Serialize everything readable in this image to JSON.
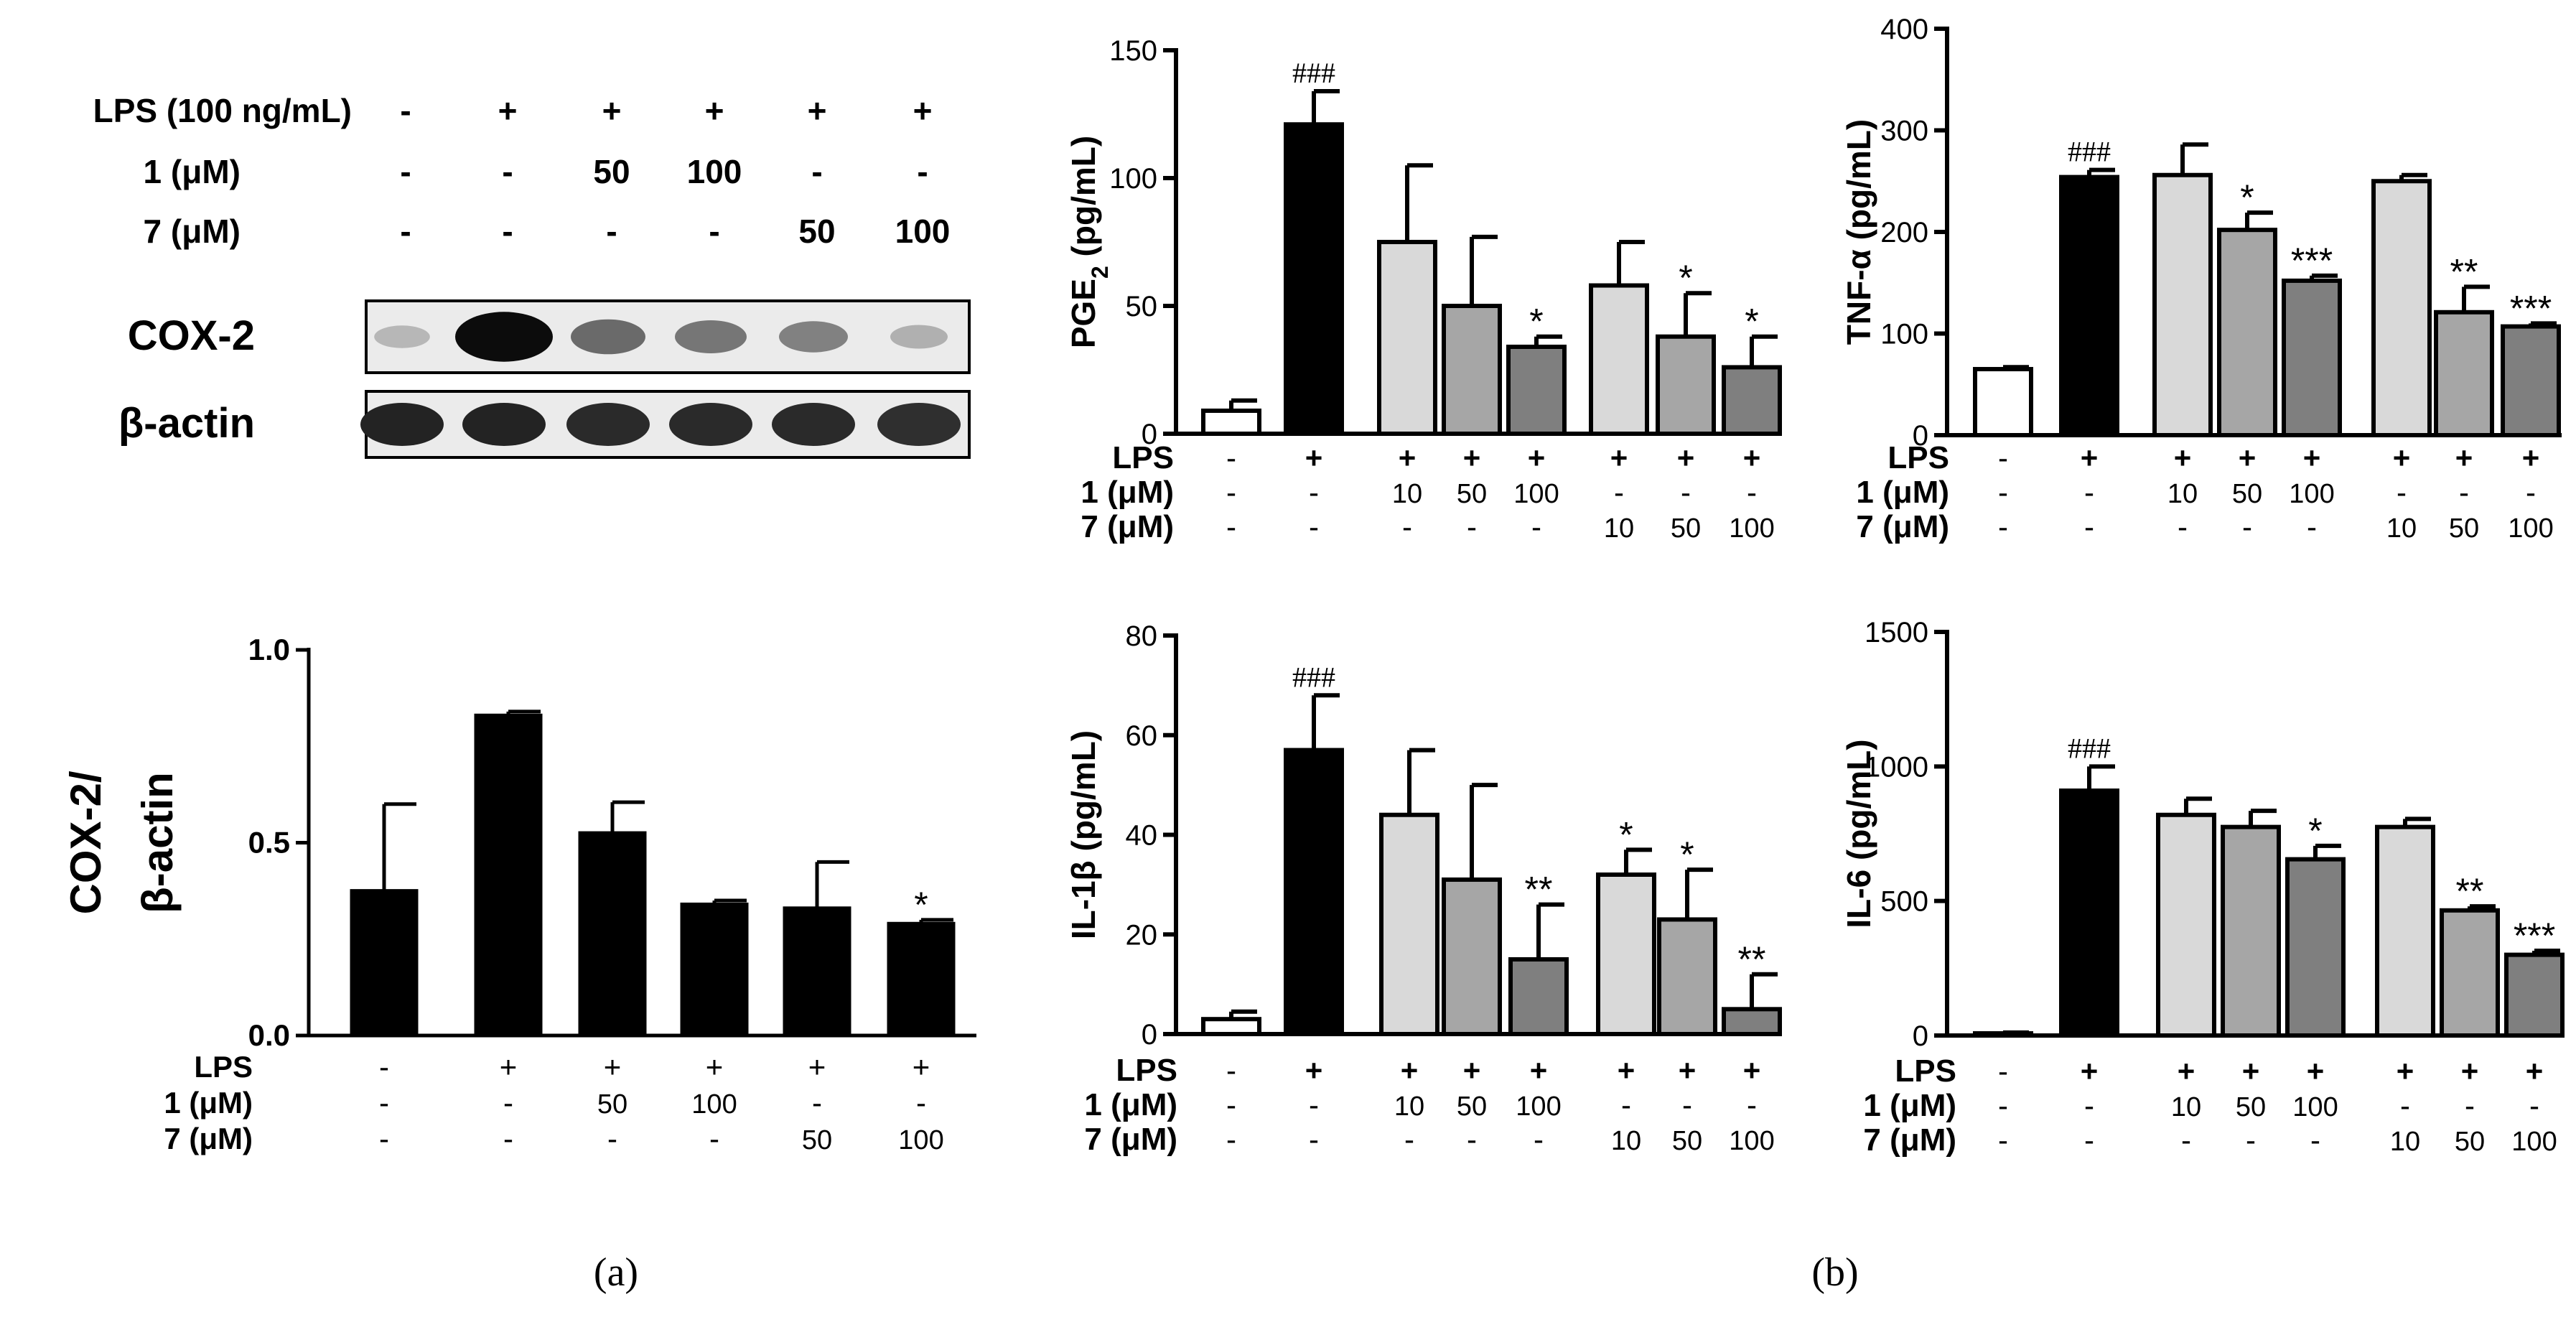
{
  "colors": {
    "ink": "#000000",
    "vehicle": "#ffffff",
    "lps": "#000000",
    "cpd10": "#d9d9d9",
    "cpd50": "#a6a6a6",
    "cpd100": "#7f7f7f"
  },
  "panel_labels": {
    "a": "(a)",
    "b": "(b)"
  },
  "blot": {
    "rows": [
      {
        "label": "LPS (100 ng/mL)",
        "cells": [
          "-",
          "+",
          "+",
          "+",
          "+",
          "+"
        ]
      },
      {
        "label": "1 (μM)",
        "cells": [
          "-",
          "-",
          "50",
          "100",
          "-",
          "-"
        ]
      },
      {
        "label": "7 (μM)",
        "cells": [
          "-",
          "-",
          "-",
          "-",
          "50",
          "100"
        ]
      }
    ],
    "bands": [
      {
        "label": "COX-2",
        "intensity": [
          0.22,
          0.95,
          0.55,
          0.5,
          0.45,
          0.25
        ]
      },
      {
        "label": "β-actin",
        "intensity": [
          0.85,
          0.85,
          0.82,
          0.82,
          0.82,
          0.8
        ]
      }
    ]
  },
  "chart_data": [
    {
      "id": "cox2",
      "type": "bar",
      "title": "",
      "ylabel": "COX-2/",
      "ylabel2": "β-actin",
      "ylim": [
        0,
        1.0
      ],
      "yticks": [
        0.0,
        0.5,
        1.0
      ],
      "ytick_labels": [
        "0.0",
        "0.5",
        "1.0"
      ],
      "values": [
        0.375,
        0.83,
        0.525,
        0.34,
        0.33,
        0.29
      ],
      "errors": [
        0.225,
        0.01,
        0.08,
        0.01,
        0.12,
        0.01
      ],
      "fills": [
        "#000000",
        "#000000",
        "#000000",
        "#000000",
        "#000000",
        "#000000"
      ],
      "sig": [
        "",
        "",
        "",
        "",
        "",
        "*"
      ],
      "grouped": false,
      "conditions": [
        {
          "label": "LPS",
          "cells": [
            "-",
            "+",
            "+",
            "+",
            "+",
            "+"
          ]
        },
        {
          "label": "1 (μM)",
          "cells": [
            "-",
            "-",
            "50",
            "100",
            "-",
            "-"
          ]
        },
        {
          "label": "7 (μM)",
          "cells": [
            "-",
            "-",
            "-",
            "-",
            "50",
            "100"
          ]
        }
      ]
    },
    {
      "id": "pge2",
      "type": "bar",
      "ylabel": "PGE",
      "ylabel_sub": "2",
      "ylabel_tail": " (pg/mL)",
      "ylim": [
        0,
        150
      ],
      "yticks": [
        0,
        50,
        100,
        150
      ],
      "ytick_labels": [
        "0",
        "50",
        "100",
        "150"
      ],
      "values": [
        9,
        121,
        75,
        50,
        34,
        58,
        38,
        26
      ],
      "errors": [
        4,
        13,
        30,
        27,
        4,
        17,
        17,
        12
      ],
      "fills": [
        "#ffffff",
        "#000000",
        "#d9d9d9",
        "#a6a6a6",
        "#7f7f7f",
        "#d9d9d9",
        "#a6a6a6",
        "#7f7f7f"
      ],
      "sig": [
        "",
        "###",
        "",
        "",
        "*",
        "",
        "*",
        "*"
      ],
      "grouped": true,
      "conditions": [
        {
          "label": "LPS",
          "cells": [
            "-",
            "+",
            "+",
            "+",
            "+",
            "+",
            "+",
            "+"
          ]
        },
        {
          "label": "1 (μM)",
          "cells": [
            "-",
            "-",
            "10",
            "50",
            "100",
            "-",
            "-",
            "-"
          ]
        },
        {
          "label": "7 (μM)",
          "cells": [
            "-",
            "-",
            "-",
            "-",
            "-",
            "10",
            "50",
            "100"
          ]
        }
      ]
    },
    {
      "id": "tnfa",
      "type": "bar",
      "ylabel": "TNF-α (pg/mL)",
      "ylim": [
        0,
        400
      ],
      "yticks": [
        0,
        100,
        200,
        300,
        400
      ],
      "ytick_labels": [
        "0",
        "100",
        "200",
        "300",
        "400"
      ],
      "values": [
        65,
        254,
        256,
        202,
        152,
        250,
        121,
        107
      ],
      "errors": [
        2,
        7,
        30,
        17,
        5,
        6,
        25,
        3
      ],
      "fills": [
        "#ffffff",
        "#000000",
        "#d9d9d9",
        "#a6a6a6",
        "#7f7f7f",
        "#d9d9d9",
        "#a6a6a6",
        "#7f7f7f"
      ],
      "sig": [
        "",
        "###",
        "",
        "*",
        "***",
        "",
        "**",
        "***"
      ],
      "grouped": true,
      "conditions": [
        {
          "label": "LPS",
          "cells": [
            "-",
            "+",
            "+",
            "+",
            "+",
            "+",
            "+",
            "+"
          ]
        },
        {
          "label": "1 (μM)",
          "cells": [
            "-",
            "-",
            "10",
            "50",
            "100",
            "-",
            "-",
            "-"
          ]
        },
        {
          "label": "7 (μM)",
          "cells": [
            "-",
            "-",
            "-",
            "-",
            "-",
            "10",
            "50",
            "100"
          ]
        }
      ]
    },
    {
      "id": "il1b",
      "type": "bar",
      "ylabel": "IL-1β (pg/mL)",
      "ylim": [
        0,
        80
      ],
      "yticks": [
        0,
        20,
        40,
        60,
        80
      ],
      "ytick_labels": [
        "0",
        "20",
        "40",
        "60",
        "80"
      ],
      "values": [
        3,
        57,
        44,
        31,
        15,
        32,
        23,
        5
      ],
      "errors": [
        1.5,
        11,
        13,
        19,
        11,
        5,
        10,
        7
      ],
      "fills": [
        "#ffffff",
        "#000000",
        "#d9d9d9",
        "#a6a6a6",
        "#7f7f7f",
        "#d9d9d9",
        "#a6a6a6",
        "#7f7f7f"
      ],
      "sig": [
        "",
        "###",
        "",
        "",
        "**",
        "*",
        "*",
        "**"
      ],
      "grouped": true,
      "conditions": [
        {
          "label": "LPS",
          "cells": [
            "-",
            "+",
            "+",
            "+",
            "+",
            "+",
            "+",
            "+"
          ]
        },
        {
          "label": "1 (μM)",
          "cells": [
            "-",
            "-",
            "10",
            "50",
            "100",
            "-",
            "-",
            "-"
          ]
        },
        {
          "label": "7 (μM)",
          "cells": [
            "-",
            "-",
            "-",
            "-",
            "-",
            "10",
            "50",
            "100"
          ]
        }
      ]
    },
    {
      "id": "il6",
      "type": "bar",
      "ylabel": "IL-6 (pg/mL)",
      "ylim": [
        0,
        1500
      ],
      "yticks": [
        0,
        500,
        1000,
        1500
      ],
      "ytick_labels": [
        "0",
        "500",
        "1000",
        "1500"
      ],
      "values": [
        8,
        910,
        820,
        775,
        655,
        775,
        465,
        300
      ],
      "errors": [
        3,
        90,
        60,
        60,
        50,
        30,
        15,
        15
      ],
      "fills": [
        "#ffffff",
        "#000000",
        "#d9d9d9",
        "#a6a6a6",
        "#7f7f7f",
        "#d9d9d9",
        "#a6a6a6",
        "#7f7f7f"
      ],
      "sig": [
        "",
        "###",
        "",
        "",
        "*",
        "",
        "**",
        "***"
      ],
      "grouped": true,
      "conditions": [
        {
          "label": "LPS",
          "cells": [
            "-",
            "+",
            "+",
            "+",
            "+",
            "+",
            "+",
            "+"
          ]
        },
        {
          "label": "1 (μM)",
          "cells": [
            "-",
            "-",
            "10",
            "50",
            "100",
            "-",
            "-",
            "-"
          ]
        },
        {
          "label": "7 (μM)",
          "cells": [
            "-",
            "-",
            "-",
            "-",
            "-",
            "10",
            "50",
            "100"
          ]
        }
      ]
    }
  ]
}
